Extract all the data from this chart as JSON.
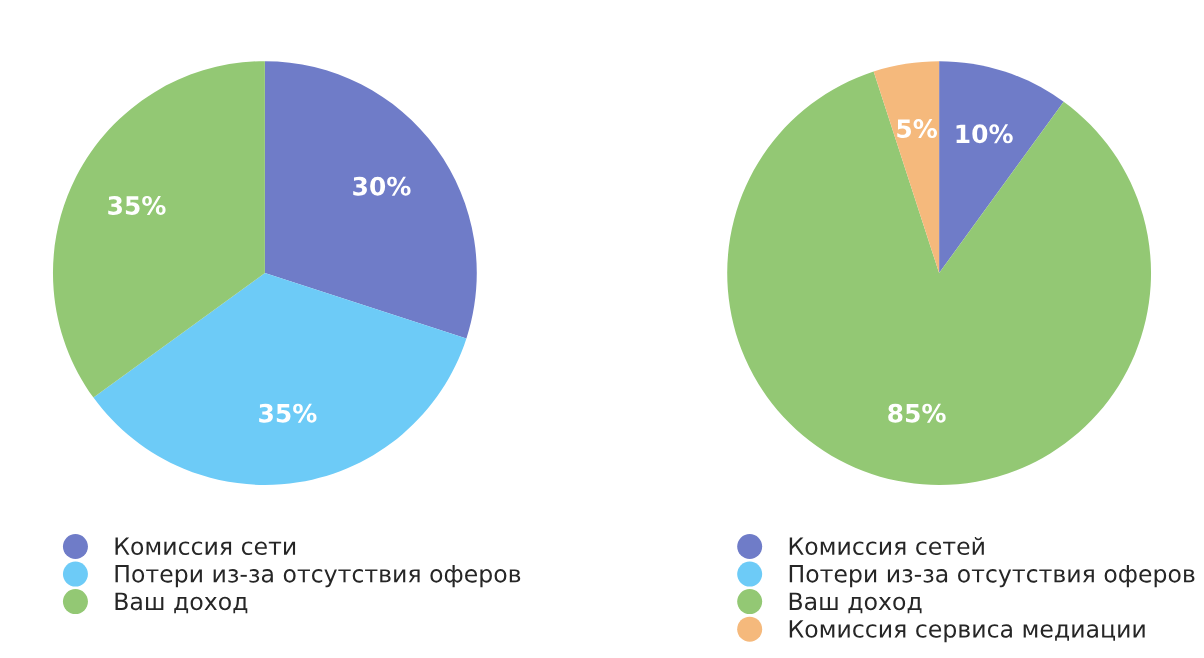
{
  "chart_data": [
    {
      "type": "pie",
      "categories": [
        "Комиссия сети",
        "Потери из-за отсутствия оферов",
        "Ваш доход"
      ],
      "values": [
        30,
        35,
        35
      ],
      "value_labels": [
        "30%",
        "35%",
        "35%"
      ],
      "colors": [
        "#6f7cc8",
        "#6dcbf7",
        "#93c874"
      ],
      "legend": "bottom"
    },
    {
      "type": "pie",
      "categories": [
        "Комиссия сетей",
        "Потери из-за отсутствия оферов",
        "Ваш доход",
        "Комиссия сервиса медиации"
      ],
      "values": [
        10,
        0,
        85,
        5
      ],
      "value_labels": [
        "10%",
        null,
        "85%",
        "5%"
      ],
      "colors": [
        "#6f7cc8",
        "#6dcbf7",
        "#93c874",
        "#f5b97c"
      ],
      "legend": "bottom"
    }
  ]
}
